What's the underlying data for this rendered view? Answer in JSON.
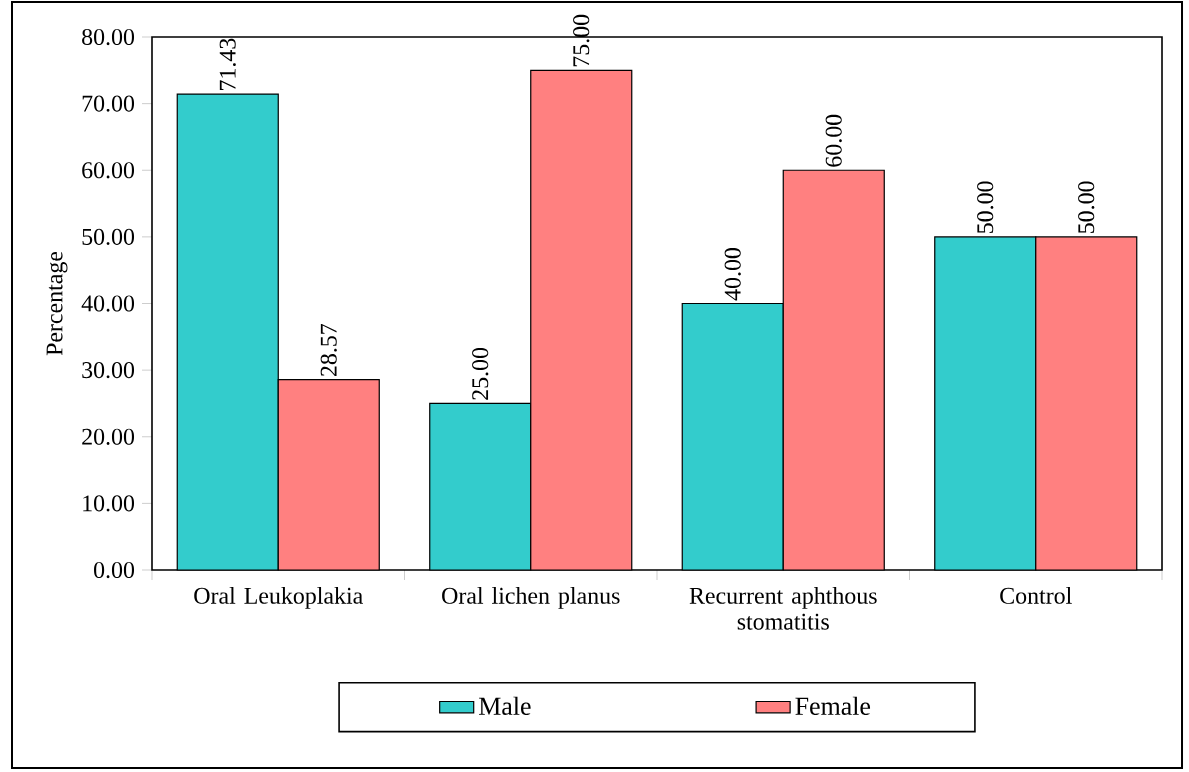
{
  "chart_data": {
    "type": "bar",
    "ylabel": "Percentage",
    "categories": [
      "Oral Leukoplakia",
      "Oral lichen planus",
      "Recurrent aphthous stomatitis",
      "Control"
    ],
    "series": [
      {
        "name": "Male",
        "color": "#33cccc",
        "values": [
          71.43,
          25,
          40,
          50
        ],
        "value_labels": [
          "71.43",
          "25.00",
          "40.00",
          "50.00"
        ]
      },
      {
        "name": "Female",
        "color": "#ff8080",
        "values": [
          28.57,
          75,
          60,
          50
        ],
        "value_labels": [
          "28.57",
          "75.00",
          "60.00",
          "50.00"
        ]
      }
    ],
    "ylim": [
      0,
      80
    ],
    "yticks": [
      {
        "value": 0,
        "label": "0.00"
      },
      {
        "value": 10,
        "label": "10.00"
      },
      {
        "value": 20,
        "label": "20.00"
      },
      {
        "value": 30,
        "label": "30.00"
      },
      {
        "value": 40,
        "label": "40.00"
      },
      {
        "value": 50,
        "label": "50.00"
      },
      {
        "value": 60,
        "label": "60.00"
      },
      {
        "value": 70,
        "label": "70.00"
      },
      {
        "value": 80,
        "label": "80.00"
      }
    ],
    "grid": false,
    "legend": "bottom"
  }
}
